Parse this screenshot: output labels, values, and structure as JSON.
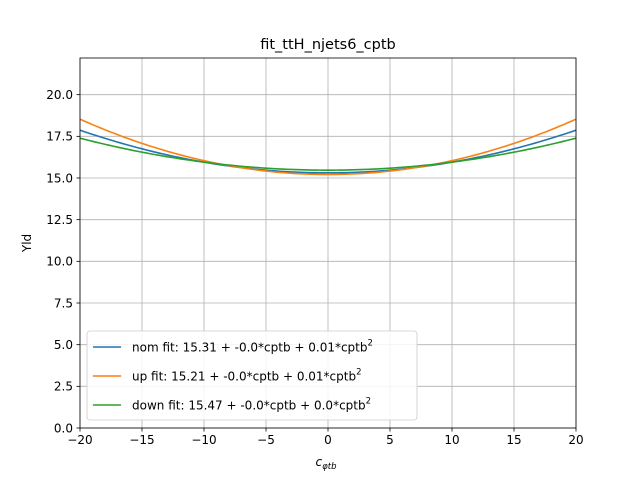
{
  "chart_data": {
    "type": "line",
    "title": "fit_ttH_njets6_cptb",
    "xlabel_main": "c",
    "xlabel_sub": "φtb",
    "ylabel": "Yld",
    "xlim": [
      -20,
      20
    ],
    "ylim": [
      0,
      22.2
    ],
    "xticks": [
      -20,
      -15,
      -10,
      -5,
      0,
      5,
      10,
      15,
      20
    ],
    "xtick_labels": [
      "−20",
      "−15",
      "−10",
      "−5",
      "0",
      "5",
      "10",
      "15",
      "20"
    ],
    "yticks": [
      0,
      2.5,
      5,
      7.5,
      10,
      12.5,
      15,
      17.5,
      20
    ],
    "ytick_labels": [
      "0.0",
      "2.5",
      "5.0",
      "7.5",
      "10.0",
      "12.5",
      "15.0",
      "17.5",
      "20.0"
    ],
    "grid": true,
    "legend_position": "lower-left",
    "series": [
      {
        "name": "nom fit: 15.31 + -0.0*cptb + 0.01*cptb",
        "name_sup": "2",
        "color": "#1f77b4",
        "coefficients": {
          "c0": 15.31,
          "c1": 0.0,
          "c2": 0.0064
        },
        "x": [
          -20,
          -15,
          -10,
          -5,
          0,
          5,
          10,
          15,
          20
        ],
        "values": [
          17.87,
          16.75,
          15.95,
          15.47,
          15.31,
          15.47,
          15.95,
          16.75,
          17.87
        ]
      },
      {
        "name": "up fit: 15.21 + -0.0*cptb + 0.01*cptb",
        "name_sup": "2",
        "color": "#ff7f0e",
        "coefficients": {
          "c0": 15.21,
          "c1": 0.0,
          "c2": 0.0083
        },
        "x": [
          -20,
          -15,
          -10,
          -5,
          0,
          5,
          10,
          15,
          20
        ],
        "values": [
          18.53,
          17.08,
          16.04,
          15.42,
          15.21,
          15.42,
          16.04,
          17.08,
          18.53
        ]
      },
      {
        "name": "down fit: 15.47 + -0.0*cptb + 0.0*cptb",
        "name_sup": "2",
        "color": "#2ca02c",
        "coefficients": {
          "c0": 15.47,
          "c1": 0.0,
          "c2": 0.0048
        },
        "x": [
          -20,
          -15,
          -10,
          -5,
          0,
          5,
          10,
          15,
          20
        ],
        "values": [
          17.39,
          16.55,
          15.95,
          15.59,
          15.47,
          15.59,
          15.95,
          16.55,
          17.39
        ]
      }
    ]
  }
}
